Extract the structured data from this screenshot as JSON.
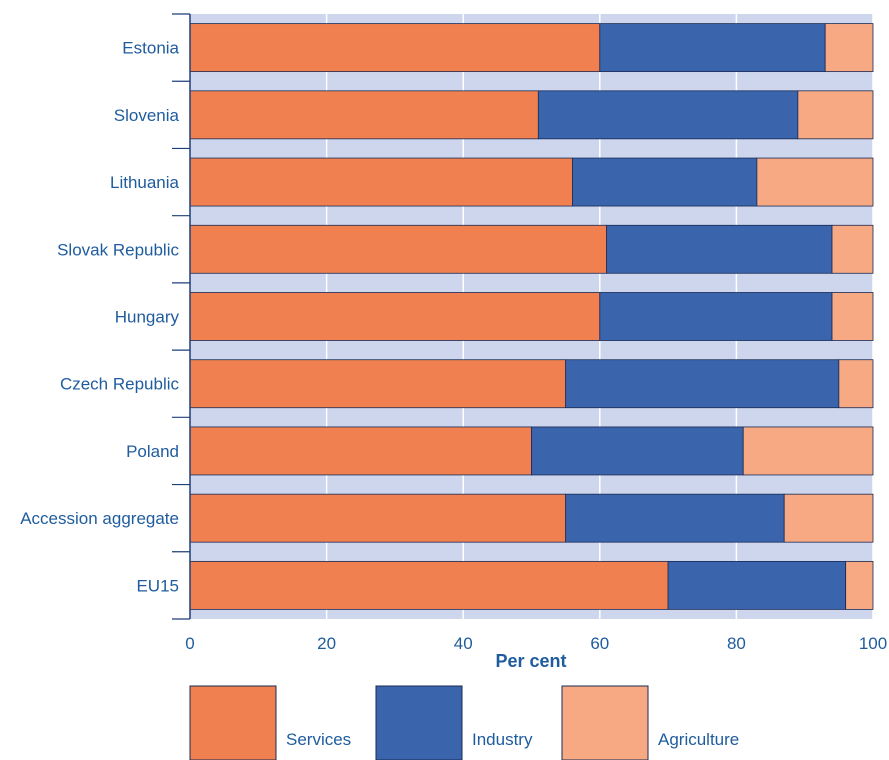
{
  "chart_data": {
    "type": "bar",
    "orientation": "horizontal",
    "stacked": true,
    "categories": [
      "Estonia",
      "Slovenia",
      "Lithuania",
      "Slovak Republic",
      "Hungary",
      "Czech Republic",
      "Poland",
      "Accession aggregate",
      "EU15"
    ],
    "series": [
      {
        "name": "Services",
        "values": [
          60,
          51,
          56,
          61,
          60,
          55,
          50,
          55,
          70
        ]
      },
      {
        "name": "Industry",
        "values": [
          33,
          38,
          27,
          33,
          34,
          40,
          31,
          32,
          26
        ]
      },
      {
        "name": "Agriculture",
        "values": [
          7,
          11,
          17,
          6,
          6,
          5,
          19,
          13,
          4
        ]
      }
    ],
    "xlabel": "Per cent",
    "xlim": [
      0,
      100
    ],
    "xticks": [
      0,
      20,
      40,
      60,
      80,
      100
    ],
    "grid": true,
    "legend": "bottom",
    "colors": {
      "Services": "#f08050",
      "Industry": "#3a65ad",
      "Agriculture": "#f7a983",
      "plot_background": "#cdd6ec",
      "gridline": "#ffffff",
      "text": "#1f5c9e",
      "axis": "#1f3f7a"
    }
  }
}
